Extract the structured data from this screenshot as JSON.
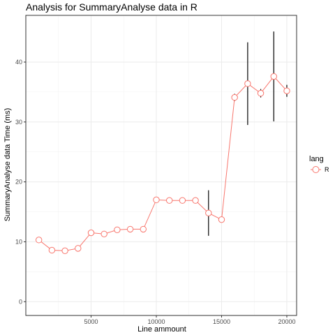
{
  "chart_data": {
    "type": "line",
    "title": "Analysis for SummaryAnalyse data in R",
    "xlabel": "Line ammount",
    "ylabel": "SummaryAnalyse data Time (ms)",
    "xlim": [
      0,
      20750
    ],
    "ylim": [
      -2.3,
      47.8
    ],
    "xticks": [
      5000,
      10000,
      15000,
      20000
    ],
    "xtick_labels": [
      "5000",
      "10000",
      "15000",
      "20000"
    ],
    "yticks": [
      0,
      10,
      20,
      30,
      40
    ],
    "ytick_labels": [
      "0",
      "10",
      "20",
      "30",
      "40"
    ],
    "grid": true,
    "legend": {
      "title": "lang",
      "position": "right",
      "entries": [
        "R"
      ]
    },
    "series": [
      {
        "name": "R",
        "color": "#F8766D",
        "x": [
          1000,
          2000,
          3000,
          4000,
          5000,
          6000,
          7000,
          8000,
          9000,
          10000,
          11000,
          12000,
          13000,
          14000,
          15000,
          16000,
          17000,
          18000,
          19000,
          20000
        ],
        "y": [
          10.3,
          8.6,
          8.5,
          8.9,
          11.5,
          11.3,
          12.0,
          12.1,
          12.1,
          17.0,
          16.9,
          16.9,
          16.9,
          14.8,
          13.7,
          34.1,
          36.4,
          34.8,
          37.6,
          35.2
        ],
        "error_low": [
          10.3,
          8.3,
          8.3,
          8.4,
          11.3,
          11.1,
          11.9,
          12.0,
          12.0,
          16.6,
          16.5,
          16.6,
          16.4,
          11.0,
          13.5,
          33.5,
          29.5,
          34.1,
          30.1,
          34.2
        ],
        "error_high": [
          10.3,
          8.9,
          8.7,
          9.4,
          11.7,
          11.5,
          12.1,
          12.2,
          12.2,
          17.4,
          17.3,
          17.2,
          17.4,
          18.6,
          13.9,
          34.7,
          43.3,
          35.5,
          45.1,
          36.2
        ]
      }
    ]
  }
}
